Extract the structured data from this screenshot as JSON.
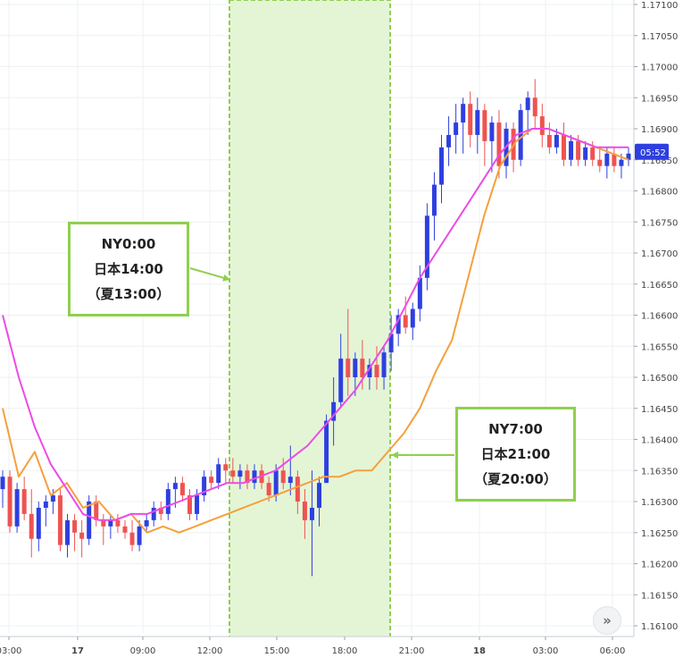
{
  "chart_data": {
    "type": "candlestick",
    "y_ticks": [
      "1.17100",
      "1.17050",
      "1.17000",
      "1.16950",
      "1.16900",
      "1.16850",
      "1.16800",
      "1.16750",
      "1.16700",
      "1.16650",
      "1.16600",
      "1.16550",
      "1.16500",
      "1.16450",
      "1.16400",
      "1.16350",
      "1.16300",
      "1.16250",
      "1.16200",
      "1.16150",
      "1.16100"
    ],
    "ylim": [
      1.161,
      1.171
    ],
    "x_ticks": [
      "03:00",
      "17",
      "09:00",
      "12:00",
      "15:00",
      "18:00",
      "21:00",
      "18",
      "03:00",
      "06:00"
    ],
    "current_price_label": "05:52",
    "colors": {
      "up": "#2e3fe0",
      "down": "#ef5350",
      "ma_fast": "#f5a03c",
      "ma_slow": "#ec4be6",
      "highlight": "#8fcf4f"
    },
    "candles": [
      [
        1.1632,
        1.1635,
        1.1629,
        1.1634
      ],
      [
        1.1634,
        1.1635,
        1.1625,
        1.1626
      ],
      [
        1.1626,
        1.1633,
        1.1625,
        1.1632
      ],
      [
        1.1632,
        1.1634,
        1.1627,
        1.1628
      ],
      [
        1.1628,
        1.1632,
        1.1621,
        1.1624
      ],
      [
        1.1624,
        1.163,
        1.1622,
        1.1629
      ],
      [
        1.1629,
        1.1631,
        1.1626,
        1.163
      ],
      [
        1.163,
        1.1632,
        1.1628,
        1.1631
      ],
      [
        1.1631,
        1.1632,
        1.1622,
        1.1623
      ],
      [
        1.1623,
        1.1628,
        1.1621,
        1.1627
      ],
      [
        1.1627,
        1.1628,
        1.1622,
        1.1625
      ],
      [
        1.1625,
        1.1627,
        1.1621,
        1.1624
      ],
      [
        1.1624,
        1.1631,
        1.1623,
        1.163
      ],
      [
        1.163,
        1.1631,
        1.1626,
        1.1627
      ],
      [
        1.1627,
        1.1628,
        1.1623,
        1.1626
      ],
      [
        1.1626,
        1.1628,
        1.1624,
        1.1627
      ],
      [
        1.1627,
        1.1628,
        1.1625,
        1.1626
      ],
      [
        1.1626,
        1.1627,
        1.1624,
        1.1625
      ],
      [
        1.1625,
        1.1627,
        1.1622,
        1.1623
      ],
      [
        1.1623,
        1.1627,
        1.1622,
        1.1626
      ],
      [
        1.1626,
        1.1628,
        1.1625,
        1.1627
      ],
      [
        1.1627,
        1.163,
        1.1626,
        1.1629
      ],
      [
        1.1629,
        1.163,
        1.1627,
        1.1628
      ],
      [
        1.1628,
        1.1633,
        1.1627,
        1.1632
      ],
      [
        1.1632,
        1.1634,
        1.1629,
        1.1633
      ],
      [
        1.1633,
        1.1634,
        1.163,
        1.1631
      ],
      [
        1.1631,
        1.1632,
        1.1627,
        1.1628
      ],
      [
        1.1628,
        1.1632,
        1.1627,
        1.1631
      ],
      [
        1.1631,
        1.1635,
        1.163,
        1.1634
      ],
      [
        1.1634,
        1.1635,
        1.1632,
        1.1633
      ],
      [
        1.1633,
        1.1637,
        1.1632,
        1.1636
      ],
      [
        1.1636,
        1.1637,
        1.1633,
        1.1635
      ],
      [
        1.1635,
        1.1637,
        1.1633,
        1.1634
      ],
      [
        1.1634,
        1.1636,
        1.1632,
        1.1635
      ],
      [
        1.1635,
        1.1636,
        1.1632,
        1.1633
      ],
      [
        1.1633,
        1.1636,
        1.1632,
        1.1635
      ],
      [
        1.1635,
        1.1636,
        1.1632,
        1.1633
      ],
      [
        1.1633,
        1.1634,
        1.163,
        1.1631
      ],
      [
        1.1631,
        1.1636,
        1.163,
        1.1635
      ],
      [
        1.1635,
        1.1637,
        1.1632,
        1.1633
      ],
      [
        1.1633,
        1.1639,
        1.1631,
        1.1634
      ],
      [
        1.1634,
        1.1635,
        1.1628,
        1.163
      ],
      [
        1.163,
        1.1632,
        1.1624,
        1.1627
      ],
      [
        1.1627,
        1.1635,
        1.1618,
        1.1629
      ],
      [
        1.1629,
        1.1634,
        1.1626,
        1.1633
      ],
      [
        1.1633,
        1.1644,
        1.1633,
        1.1643
      ],
      [
        1.1643,
        1.165,
        1.1639,
        1.1646
      ],
      [
        1.1646,
        1.1657,
        1.1645,
        1.1653
      ],
      [
        1.1653,
        1.1661,
        1.1647,
        1.165
      ],
      [
        1.165,
        1.1654,
        1.1647,
        1.1653
      ],
      [
        1.1653,
        1.1656,
        1.1648,
        1.165
      ],
      [
        1.165,
        1.1653,
        1.1648,
        1.1652
      ],
      [
        1.1652,
        1.1655,
        1.1648,
        1.165
      ],
      [
        1.165,
        1.1655,
        1.1648,
        1.1654
      ],
      [
        1.1654,
        1.166,
        1.1651,
        1.1657
      ],
      [
        1.1657,
        1.1661,
        1.1655,
        1.166
      ],
      [
        1.166,
        1.1663,
        1.1657,
        1.1658
      ],
      [
        1.1658,
        1.1662,
        1.1656,
        1.1661
      ],
      [
        1.1661,
        1.1668,
        1.1659,
        1.1666
      ],
      [
        1.1666,
        1.1678,
        1.1664,
        1.1676
      ],
      [
        1.1676,
        1.1683,
        1.1672,
        1.1681
      ],
      [
        1.1681,
        1.1689,
        1.1678,
        1.1687
      ],
      [
        1.1687,
        1.1692,
        1.1684,
        1.1689
      ],
      [
        1.1689,
        1.1694,
        1.1686,
        1.1691
      ],
      [
        1.1691,
        1.1695,
        1.1686,
        1.1694
      ],
      [
        1.1694,
        1.1696,
        1.1687,
        1.1689
      ],
      [
        1.1689,
        1.1695,
        1.1686,
        1.1693
      ],
      [
        1.1693,
        1.1694,
        1.1684,
        1.1688
      ],
      [
        1.1688,
        1.1692,
        1.1683,
        1.1691
      ],
      [
        1.1691,
        1.1693,
        1.1682,
        1.1684
      ],
      [
        1.1684,
        1.1691,
        1.1682,
        1.169
      ],
      [
        1.169,
        1.1691,
        1.1683,
        1.1685
      ],
      [
        1.1685,
        1.1694,
        1.1684,
        1.1693
      ],
      [
        1.1693,
        1.1696,
        1.1689,
        1.1695
      ],
      [
        1.1695,
        1.1698,
        1.169,
        1.1692
      ],
      [
        1.1692,
        1.1694,
        1.1687,
        1.1689
      ],
      [
        1.1689,
        1.1691,
        1.1686,
        1.1687
      ],
      [
        1.1687,
        1.169,
        1.1686,
        1.1689
      ],
      [
        1.1689,
        1.1691,
        1.1684,
        1.1685
      ],
      [
        1.1685,
        1.1689,
        1.1684,
        1.1688
      ],
      [
        1.1688,
        1.1689,
        1.1684,
        1.1685
      ],
      [
        1.1685,
        1.1688,
        1.1684,
        1.1687
      ],
      [
        1.1687,
        1.1688,
        1.1684,
        1.1685
      ],
      [
        1.1685,
        1.1687,
        1.1683,
        1.1684
      ],
      [
        1.1684,
        1.1687,
        1.1682,
        1.1686
      ],
      [
        1.1686,
        1.1687,
        1.1683,
        1.1684
      ],
      [
        1.1684,
        1.1686,
        1.1682,
        1.1685
      ],
      [
        1.1685,
        1.1687,
        1.1684,
        1.1686
      ]
    ],
    "ma_fast": [
      [
        1.1645,
        1.1634
      ],
      [
        1.1638,
        1.1631
      ],
      [
        1.1633,
        1.1629
      ],
      [
        1.163,
        1.1627
      ],
      [
        1.1628,
        1.1625
      ],
      [
        1.1626,
        1.1625
      ],
      [
        1.1626,
        1.1627
      ],
      [
        1.1628,
        1.1629
      ],
      [
        1.163,
        1.1631
      ],
      [
        1.1632,
        1.1633
      ],
      [
        1.1634,
        1.1634
      ],
      [
        1.1635,
        1.1635
      ],
      [
        1.1638,
        1.1641
      ],
      [
        1.1645,
        1.1651
      ],
      [
        1.1656,
        1.1666
      ],
      [
        1.1676,
        1.1684
      ],
      [
        1.1688,
        1.169
      ],
      [
        1.169,
        1.1689
      ],
      [
        1.1688,
        1.1687
      ],
      [
        1.1686,
        1.1685
      ]
    ],
    "ma_slow": [
      [
        1.166,
        1.165
      ],
      [
        1.1642,
        1.1636
      ],
      [
        1.1632,
        1.1628
      ],
      [
        1.1627,
        1.1627
      ],
      [
        1.1628,
        1.1628
      ],
      [
        1.1629,
        1.163
      ],
      [
        1.1631,
        1.1632
      ],
      [
        1.1633,
        1.1633
      ],
      [
        1.1634,
        1.1635
      ],
      [
        1.1637,
        1.1639
      ],
      [
        1.1642,
        1.1645
      ],
      [
        1.1648,
        1.1652
      ],
      [
        1.1656,
        1.1661
      ],
      [
        1.1666,
        1.167
      ],
      [
        1.1674,
        1.1678
      ],
      [
        1.1682,
        1.1686
      ],
      [
        1.1689,
        1.169
      ],
      [
        1.169,
        1.1689
      ],
      [
        1.1688,
        1.1687
      ],
      [
        1.1687,
        1.1687
      ]
    ],
    "callouts": [
      {
        "lines": [
          "NY0:00",
          "日本14:00",
          "（夏13:00）"
        ]
      },
      {
        "lines": [
          "NY7:00",
          "日本21:00",
          "（夏20:00）"
        ]
      }
    ]
  }
}
